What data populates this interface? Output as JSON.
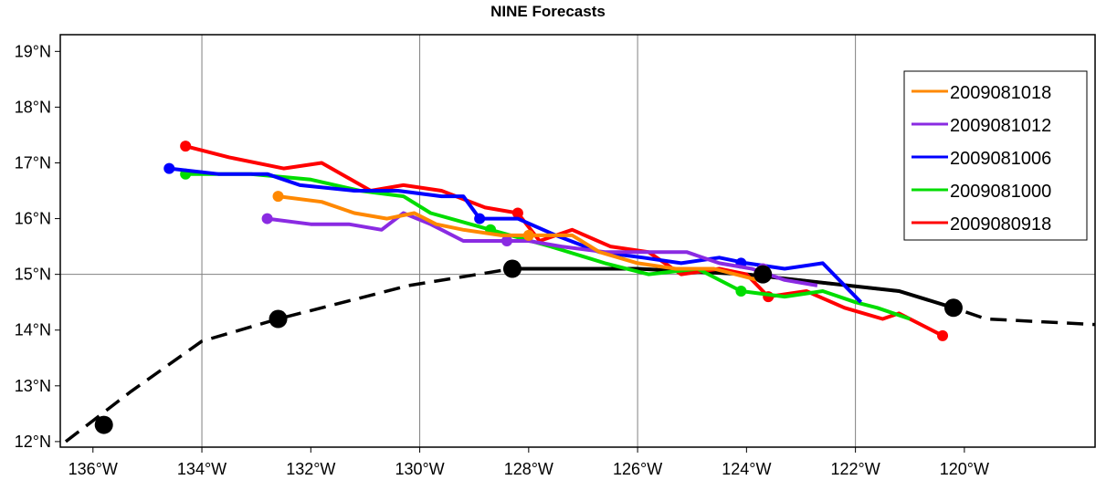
{
  "chart_data": {
    "type": "line",
    "title": "NINE Forecasts",
    "xlabel": "",
    "ylabel": "",
    "xlim": [
      -136.6,
      -117.6
    ],
    "ylim": [
      11.9,
      19.3
    ],
    "grid": true,
    "x_ticks": [
      -136,
      -134,
      -132,
      -130,
      -128,
      -126,
      -124,
      -122,
      -120
    ],
    "x_tick_labels": [
      "136°W",
      "134°W",
      "132°W",
      "130°W",
      "128°W",
      "126°W",
      "124°W",
      "122°W",
      "120°W"
    ],
    "y_ticks": [
      12,
      13,
      14,
      15,
      16,
      17,
      18,
      19
    ],
    "y_tick_labels": [
      "12°N",
      "13°N",
      "14°N",
      "15°N",
      "16°N",
      "17°N",
      "18°N",
      "19°N"
    ],
    "legend_position": "top-right",
    "observed_track": {
      "color": "#000000",
      "x": [
        -136.5,
        -135.3,
        -134.0,
        -132.6,
        -130.2,
        -128.3,
        -126.0,
        -124.0,
        -121.2,
        -120.2,
        -119.6,
        -117.6
      ],
      "y": [
        12.0,
        12.9,
        13.8,
        14.2,
        14.8,
        15.1,
        15.1,
        15.0,
        14.7,
        14.4,
        14.2,
        14.1
      ],
      "markers_x": [
        -135.8,
        -132.6,
        -128.3,
        -123.7,
        -120.2
      ],
      "markers_y": [
        12.3,
        14.2,
        15.1,
        15.0,
        14.4
      ]
    },
    "series": [
      {
        "name": "2009081018",
        "color": "#ff8800",
        "x": [
          -132.6,
          -131.8,
          -131.2,
          -130.6,
          -130.1,
          -129.7,
          -129.2,
          -128.5,
          -127.9,
          -127.2,
          -126.7,
          -126.0,
          -125.3,
          -124.6,
          -123.8
        ],
        "y": [
          16.4,
          16.3,
          16.1,
          16.0,
          16.1,
          15.9,
          15.8,
          15.7,
          15.7,
          15.7,
          15.4,
          15.2,
          15.1,
          15.1,
          14.9
        ],
        "markers_x": [
          -132.6,
          -128.0
        ],
        "markers_y": [
          16.4,
          15.7
        ]
      },
      {
        "name": "2009081012",
        "color": "#8a2be2",
        "x": [
          -132.8,
          -132.0,
          -131.3,
          -130.7,
          -130.3,
          -129.8,
          -129.2,
          -128.5,
          -128.0,
          -127.4,
          -126.6,
          -125.8,
          -125.1,
          -124.5,
          -123.9,
          -123.3,
          -122.7
        ],
        "y": [
          16.0,
          15.9,
          15.9,
          15.8,
          16.1,
          15.9,
          15.6,
          15.6,
          15.6,
          15.5,
          15.4,
          15.4,
          15.4,
          15.2,
          15.1,
          14.9,
          14.8
        ],
        "markers_x": [
          -132.8,
          -128.4,
          -123.7
        ],
        "markers_y": [
          16.0,
          15.6,
          15.1
        ]
      },
      {
        "name": "2009081006",
        "color": "#0000ff",
        "x": [
          -134.6,
          -133.7,
          -132.8,
          -132.2,
          -131.2,
          -130.4,
          -129.6,
          -129.2,
          -128.9,
          -128.2,
          -127.5,
          -126.7,
          -125.9,
          -125.2,
          -124.5,
          -124.0,
          -123.3,
          -122.6,
          -121.9
        ],
        "y": [
          16.9,
          16.8,
          16.8,
          16.6,
          16.5,
          16.5,
          16.4,
          16.4,
          16.0,
          16.0,
          15.7,
          15.4,
          15.3,
          15.2,
          15.3,
          15.2,
          15.1,
          15.2,
          14.5
        ],
        "markers_x": [
          -134.6,
          -128.9,
          -124.1
        ],
        "markers_y": [
          16.9,
          16.0,
          15.2
        ]
      },
      {
        "name": "2009081000",
        "color": "#00dd00",
        "x": [
          -134.3,
          -133.1,
          -132.0,
          -131.1,
          -130.3,
          -129.8,
          -128.7,
          -127.6,
          -126.6,
          -125.8,
          -124.9,
          -124.1,
          -123.3,
          -122.6,
          -122.0,
          -121.6,
          -121.0
        ],
        "y": [
          16.8,
          16.8,
          16.7,
          16.5,
          16.4,
          16.1,
          15.8,
          15.5,
          15.2,
          15.0,
          15.1,
          14.7,
          14.6,
          14.7,
          14.5,
          14.4,
          14.2
        ],
        "markers_x": [
          -134.3,
          -128.7,
          -124.1
        ],
        "markers_y": [
          16.8,
          15.8,
          14.7
        ]
      },
      {
        "name": "2009080918",
        "color": "#ff0000",
        "x": [
          -134.3,
          -133.5,
          -132.5,
          -131.8,
          -130.9,
          -130.3,
          -129.6,
          -128.8,
          -128.2,
          -127.8,
          -127.2,
          -126.5,
          -125.8,
          -125.2,
          -124.5,
          -124.0,
          -123.6,
          -122.9,
          -122.2,
          -121.5,
          -121.2,
          -120.4
        ],
        "y": [
          17.3,
          17.1,
          16.9,
          17.0,
          16.5,
          16.6,
          16.5,
          16.2,
          16.1,
          15.6,
          15.8,
          15.5,
          15.4,
          15.0,
          15.1,
          15.0,
          14.6,
          14.7,
          14.4,
          14.2,
          14.3,
          13.9
        ],
        "markers_x": [
          -134.3,
          -128.2,
          -123.6,
          -120.4
        ],
        "markers_y": [
          17.3,
          16.1,
          14.6,
          13.9
        ]
      }
    ]
  }
}
